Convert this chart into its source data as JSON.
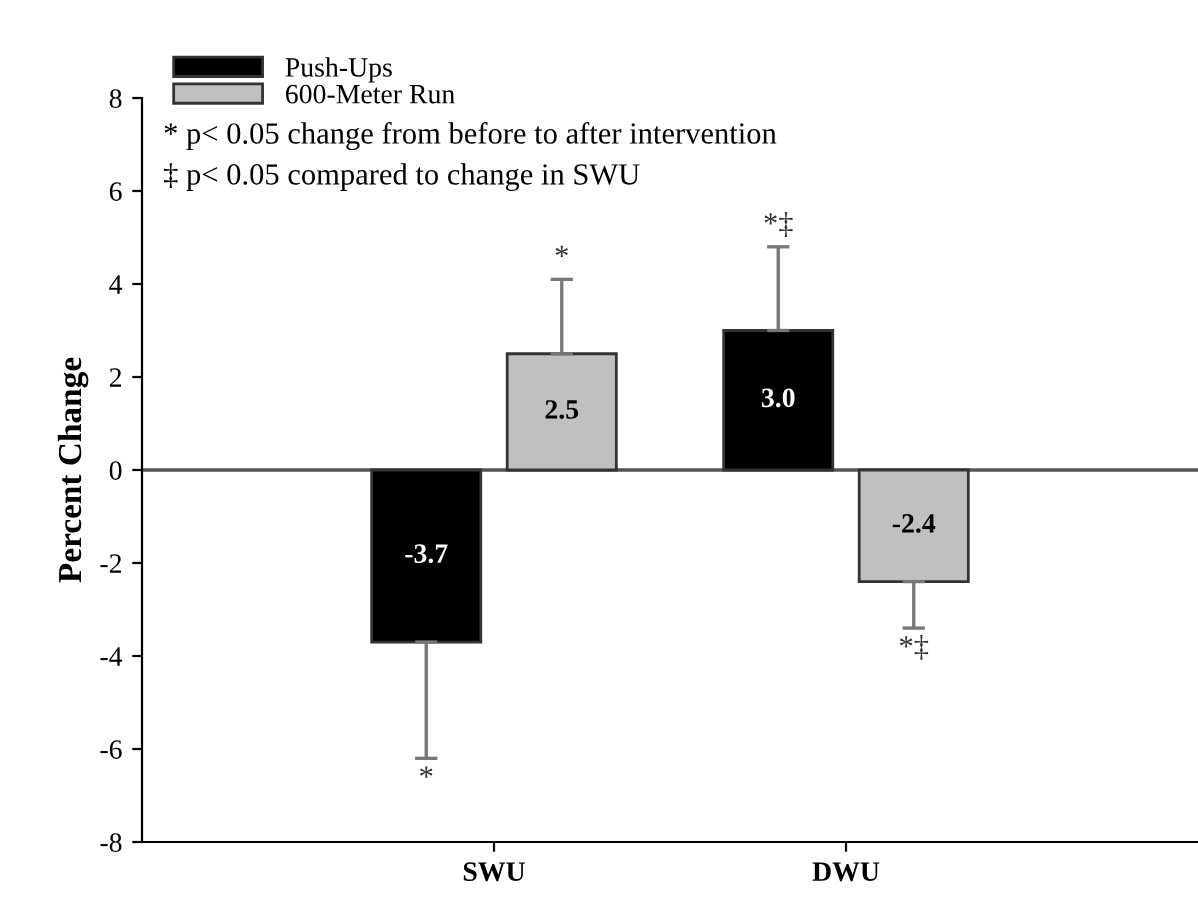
{
  "chart_data": {
    "type": "bar",
    "ylabel": "Percent Change",
    "categories": [
      "SWU",
      "DWU"
    ],
    "series": [
      {
        "name": "Push-Ups",
        "color": "#000000",
        "values": [
          -3.7,
          3.0
        ],
        "errors": [
          [
            -6.2,
            -3.7
          ],
          [
            3.0,
            4.8
          ]
        ],
        "value_labels": [
          "-3.7",
          "3.0"
        ]
      },
      {
        "name": "600-Meter Run",
        "color": "#c0c0c0",
        "values": [
          2.5,
          -2.4
        ],
        "errors": [
          [
            2.5,
            4.1
          ],
          [
            -3.4,
            -2.4
          ]
        ],
        "value_labels": [
          "2.5",
          "-2.4"
        ]
      }
    ],
    "ylim": [
      -8,
      8
    ],
    "yticks": [
      -8,
      -6,
      -4,
      -2,
      0,
      2,
      4,
      6,
      8
    ],
    "legend": "top left",
    "ref_lines": [
      {
        "axis": "y",
        "value": 0,
        "color": "#555555"
      }
    ],
    "annotations": [
      "* p< 0.05 change from before to after intervention",
      "‡ p< 0.05 compared to change in SWU",
      "*",
      "*",
      "*‡",
      "*‡"
    ]
  }
}
